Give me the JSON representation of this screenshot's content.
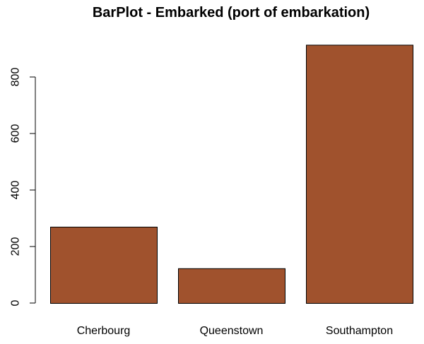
{
  "chart_data": {
    "type": "bar",
    "title": "BarPlot - Embarked (port of embarkation)",
    "xlabel": "",
    "ylabel": "",
    "categories": [
      "Cherbourg",
      "Queenstown",
      "Southampton"
    ],
    "values": [
      270,
      123,
      914
    ],
    "ylim": [
      0,
      914
    ],
    "yticks": [
      "0",
      "200",
      "400",
      "600",
      "800"
    ],
    "bar_color": "#a0522d",
    "bar_border_color": "#000000",
    "grid": false,
    "legend": "none"
  }
}
